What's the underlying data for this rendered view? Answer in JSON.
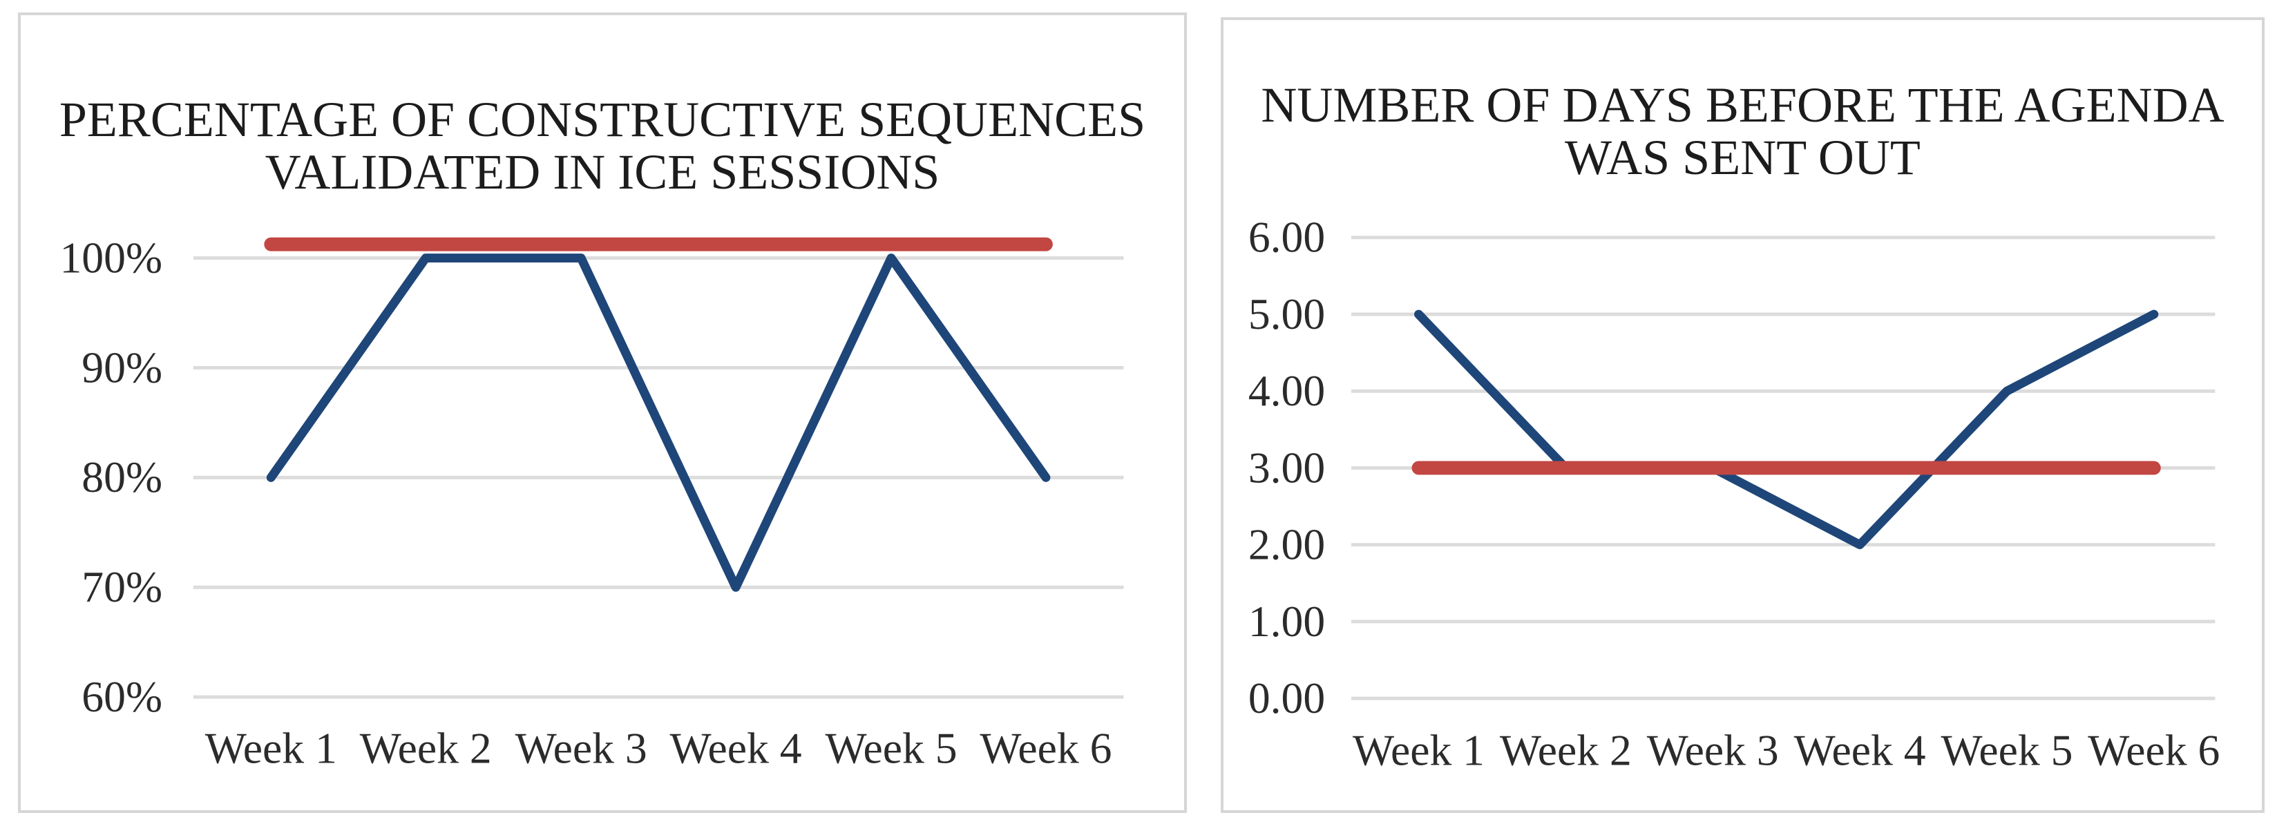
{
  "style": {
    "background": "#ffffff",
    "panel_border": "#d6d6d6",
    "grid_color": "#dcdcdc",
    "axis_text_color": "#2b2b2b",
    "title_text_color": "#1c1c1c",
    "actual_line_color": "#1e4679",
    "target_line_color": "#c24641"
  },
  "chart_data": [
    {
      "type": "line",
      "title": "PERCENTAGE OF CONSTRUCTIVE SEQUENCES VALIDATED IN ICE SESSIONS",
      "title_lines": [
        "PERCENTAGE OF CONSTRUCTIVE SEQUENCES",
        "VALIDATED IN ICE SESSIONS"
      ],
      "categories": [
        "Week 1",
        "Week 2",
        "Week 3",
        "Week 4",
        "Week 5",
        "Week 6"
      ],
      "series": [
        {
          "name": "validated-percentage",
          "color": "#1e4679",
          "values": [
            80,
            100,
            100,
            70,
            100,
            80
          ]
        },
        {
          "name": "target",
          "color": "#c24641",
          "values": [
            100,
            100,
            100,
            100,
            100,
            100
          ]
        }
      ],
      "ylim": [
        60,
        100
      ],
      "yticks": [
        {
          "value": 100,
          "label": "100%"
        },
        {
          "value": 90,
          "label": "90%"
        },
        {
          "value": 80,
          "label": "80%"
        },
        {
          "value": 70,
          "label": "70%"
        },
        {
          "value": 60,
          "label": "60%"
        }
      ],
      "xlabel": "",
      "ylabel": "",
      "grid": true,
      "legend": "none"
    },
    {
      "type": "line",
      "title": "NUMBER OF DAYS BEFORE THE AGENDA WAS SENT OUT",
      "title_lines": [
        "NUMBER OF DAYS BEFORE THE AGENDA",
        "WAS SENT OUT"
      ],
      "categories": [
        "Week 1",
        "Week 2",
        "Week 3",
        "Week 4",
        "Week 5",
        "Week 6"
      ],
      "series": [
        {
          "name": "days-before-agenda-sent",
          "color": "#1e4679",
          "values": [
            5.0,
            3.0,
            3.0,
            2.0,
            4.0,
            5.0
          ]
        },
        {
          "name": "target",
          "color": "#c24641",
          "values": [
            3.0,
            3.0,
            3.0,
            3.0,
            3.0,
            3.0
          ]
        }
      ],
      "ylim": [
        0,
        6
      ],
      "yticks": [
        {
          "value": 6,
          "label": "6.00"
        },
        {
          "value": 5,
          "label": "5.00"
        },
        {
          "value": 4,
          "label": "4.00"
        },
        {
          "value": 3,
          "label": "3.00"
        },
        {
          "value": 2,
          "label": "2.00"
        },
        {
          "value": 1,
          "label": "1.00"
        },
        {
          "value": 0,
          "label": "0.00"
        }
      ],
      "xlabel": "",
      "ylabel": "",
      "grid": true,
      "legend": "none"
    }
  ]
}
